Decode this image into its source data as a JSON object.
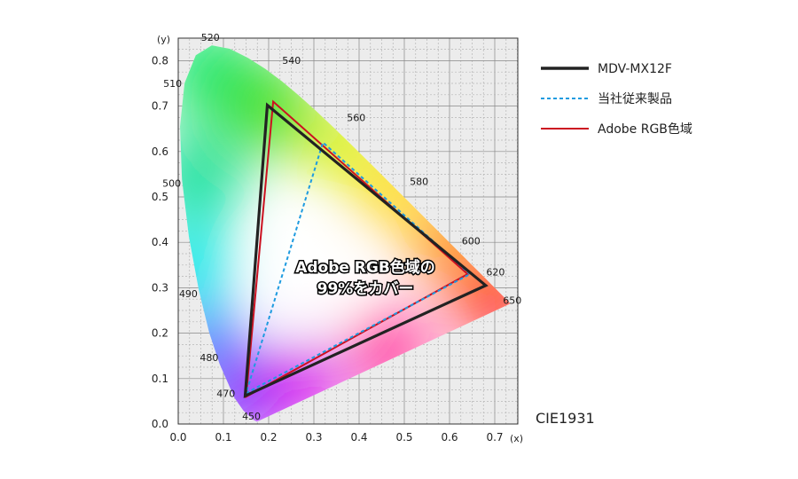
{
  "chart_data": {
    "type": "line",
    "xlabel": "(x)",
    "ylabel": "(y)",
    "xlim": [
      0.0,
      0.75
    ],
    "ylim": [
      0.0,
      0.85
    ],
    "x_ticks": [
      "0.0",
      "0.1",
      "0.2",
      "0.3",
      "0.4",
      "0.5",
      "0.6",
      "0.7"
    ],
    "y_ticks": [
      "0.0",
      "0.1",
      "0.2",
      "0.3",
      "0.4",
      "0.5",
      "0.6",
      "0.7",
      "0.8"
    ],
    "grid": true,
    "legend_position": "right",
    "standard_label": "CIE1931",
    "annotation": [
      "Adobe RGB色域の",
      "99%をカバー"
    ],
    "spectral_locus_labels": [
      {
        "nm": "450",
        "x": 0.157,
        "y": 0.018
      },
      {
        "nm": "470",
        "x": 0.124,
        "y": 0.058
      },
      {
        "nm": "480",
        "x": 0.091,
        "y": 0.133
      },
      {
        "nm": "490",
        "x": 0.045,
        "y": 0.295
      },
      {
        "nm": "500",
        "x": 0.008,
        "y": 0.538
      },
      {
        "nm": "510",
        "x": 0.014,
        "y": 0.75
      },
      {
        "nm": "520",
        "x": 0.074,
        "y": 0.834
      },
      {
        "nm": "540",
        "x": 0.23,
        "y": 0.754
      },
      {
        "nm": "560",
        "x": 0.373,
        "y": 0.624
      },
      {
        "nm": "580",
        "x": 0.512,
        "y": 0.487
      },
      {
        "nm": "600",
        "x": 0.627,
        "y": 0.372
      },
      {
        "nm": "620",
        "x": 0.691,
        "y": 0.308
      },
      {
        "nm": "650",
        "x": 0.726,
        "y": 0.274
      }
    ],
    "series": [
      {
        "name": "MDV-MX12F",
        "color": "#222222",
        "style": "solid",
        "points": [
          [
            0.68,
            0.305
          ],
          [
            0.197,
            0.702
          ],
          [
            0.148,
            0.062
          ]
        ]
      },
      {
        "name": "当社従来製品",
        "color": "#1e9be0",
        "style": "dashed",
        "points": [
          [
            0.645,
            0.33
          ],
          [
            0.32,
            0.62
          ],
          [
            0.15,
            0.068
          ]
        ]
      },
      {
        "name": "Adobe RGB色域",
        "color": "#cc1020",
        "style": "solid",
        "points": [
          [
            0.64,
            0.33
          ],
          [
            0.21,
            0.71
          ],
          [
            0.15,
            0.06
          ]
        ]
      }
    ]
  }
}
